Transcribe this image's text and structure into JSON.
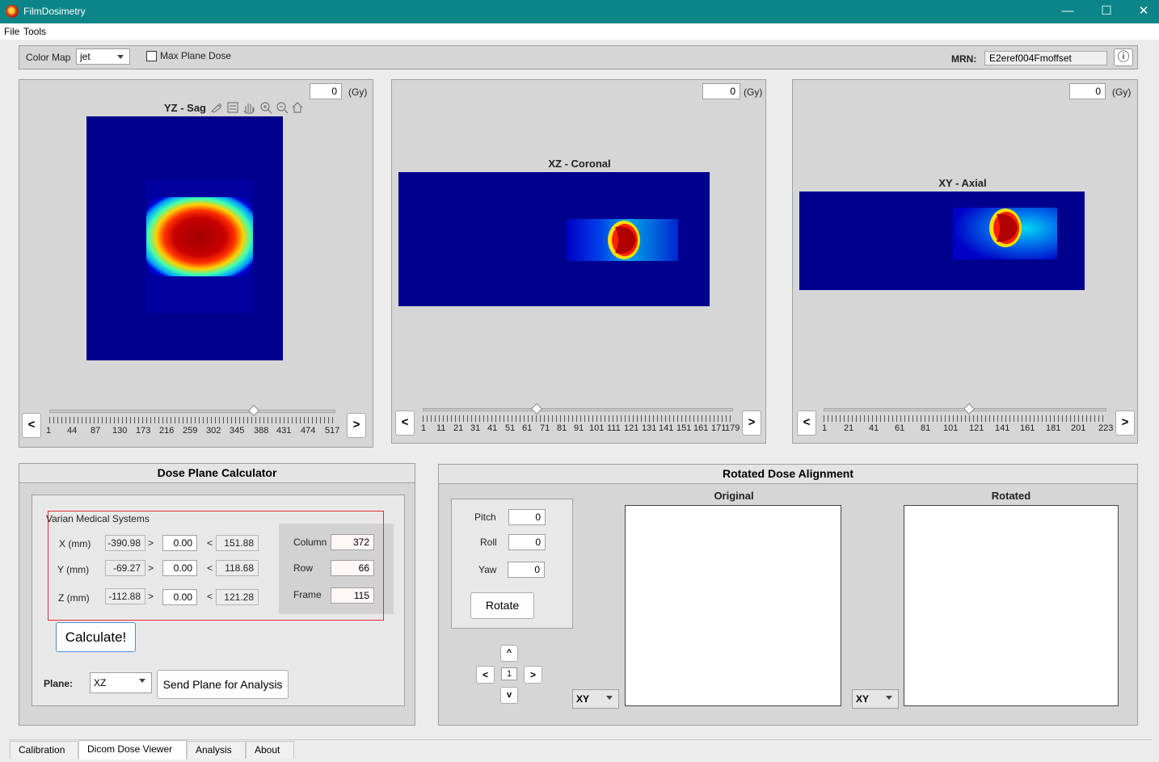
{
  "window": {
    "title": "FilmDosimetry",
    "minimize": "—",
    "maximize": "☐",
    "close": "✕"
  },
  "menu": [
    "File",
    "Tools"
  ],
  "toolbar": {
    "colormap_label": "Color Map",
    "colormap_value": "jet",
    "max_plane_label": "Max Plane Dose",
    "mrn_label": "MRN:",
    "mrn_value": "E2eref004Fmoffset",
    "info_glyph": "ⓘ"
  },
  "views": [
    {
      "title": "YZ - Sag",
      "dose_value": "0",
      "unit": "(Gy)",
      "ticks": [
        "1",
        "44",
        "87",
        "130",
        "173",
        "216",
        "259",
        "302",
        "345",
        "388",
        "431",
        "474",
        "517"
      ],
      "slider_fraction": 0.79,
      "prev": "<",
      "next": ">"
    },
    {
      "title": "XZ - Coronal",
      "dose_value": "0",
      "unit": "(Gy)",
      "ticks": [
        "1",
        "11",
        "21",
        "31",
        "41",
        "51",
        "61",
        "71",
        "81",
        "91",
        "101",
        "111",
        "121",
        "131",
        "141",
        "151",
        "161",
        "171",
        "179"
      ],
      "slider_fraction": 0.37,
      "prev": "<",
      "next": ">"
    },
    {
      "title": "XY - Axial",
      "dose_value": "0",
      "unit": "(Gy)",
      "ticks": [
        "1",
        "21",
        "41",
        "61",
        "81",
        "101",
        "121",
        "141",
        "161",
        "181",
        "201",
        "223"
      ],
      "slider_fraction": 0.52,
      "prev": "<",
      "next": ">"
    }
  ],
  "plot_toolbar_icons": [
    "brush-icon",
    "legend-icon",
    "pan-hand-icon",
    "zoom-in-icon",
    "zoom-out-icon",
    "home-icon"
  ],
  "calculator": {
    "title": "Dose Plane Calculator",
    "vendor": "Varian Medical Systems",
    "rows": [
      {
        "label": "X (mm)",
        "min": "-390.98",
        "gt": ">",
        "value": "0.00",
        "lt": "<",
        "max": "151.88"
      },
      {
        "label": "Y (mm)",
        "min": "-69.27",
        "gt": ">",
        "value": "0.00",
        "lt": "<",
        "max": "118.68"
      },
      {
        "label": "Z (mm)",
        "min": "-112.88",
        "gt": ">",
        "value": "0.00",
        "lt": "<",
        "max": "121.28"
      }
    ],
    "index": [
      {
        "label": "Column",
        "value": "372"
      },
      {
        "label": "Row",
        "value": "66"
      },
      {
        "label": "Frame",
        "value": "115"
      }
    ],
    "calculate_label": "Calculate!",
    "plane_label": "Plane:",
    "plane_value": "XZ",
    "send_label": "Send Plane for Analysis"
  },
  "rotated": {
    "title": "Rotated Dose Alignment",
    "pitch_label": "Pitch",
    "pitch_value": "0",
    "roll_label": "Roll",
    "roll_value": "0",
    "yaw_label": "Yaw",
    "yaw_value": "0",
    "rotate_label": "Rotate",
    "step_up": "^",
    "step_left": "<",
    "step_value": "1",
    "step_right": ">",
    "step_down": "v",
    "original_title": "Original",
    "rotated_title": "Rotated",
    "original_plane": "XY",
    "rotated_plane": "XY"
  },
  "tabs": [
    {
      "label": "Calibration",
      "active": false
    },
    {
      "label": "Dicom Dose Viewer",
      "active": true
    },
    {
      "label": "Analysis",
      "active": false
    },
    {
      "label": "About",
      "active": false
    }
  ],
  "colors": {
    "titlebar": "#0b8587",
    "heatmap_bg": "#00008f",
    "highlight_box": "#e03030"
  }
}
